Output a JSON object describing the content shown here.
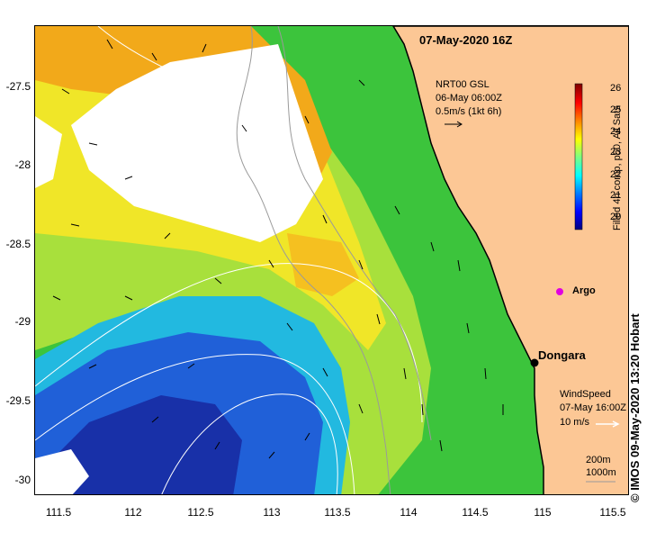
{
  "title": "07-May-2020 16Z",
  "credit": "© IMOS 09-May-2020 13:20 Hobart",
  "lon_ticks": [
    "111.5",
    "112",
    "112.5",
    "113",
    "113.5",
    "114",
    "114.5",
    "115",
    "115.5"
  ],
  "lat_ticks": [
    "-27.5",
    "-28",
    "-28.5",
    "-29",
    "-29.5",
    "-30"
  ],
  "current_legend": {
    "line1": "NRT00 GSL",
    "line2": "06-May 06:00Z",
    "line3": "0.5m/s (1kt 6h)"
  },
  "wind_legend": {
    "line1": "WindSpeed",
    "line2": "07-May 16:00Z",
    "line3": "10 m/s"
  },
  "isobath_legend": {
    "line1": "200m",
    "line2": "1000m"
  },
  "places": {
    "dongara": "Dongara",
    "argo": "Argo"
  },
  "colorbar": {
    "label": "Filled 4h comp, p50, All Sats",
    "ticks": [
      "26",
      "25",
      "24",
      "23",
      "22",
      "21",
      "20"
    ],
    "range": [
      19.5,
      26.3
    ],
    "colors": [
      "#00007f",
      "#0000ff",
      "#007fff",
      "#00ffff",
      "#7fff7f",
      "#ffff00",
      "#ff7f00",
      "#ff0000",
      "#7f0000"
    ]
  },
  "colors": {
    "land": "#fcc795",
    "coast": "#000000",
    "contour": "#ffffff",
    "isobath": "#9a9a9a",
    "argo": "#e000e0"
  }
}
